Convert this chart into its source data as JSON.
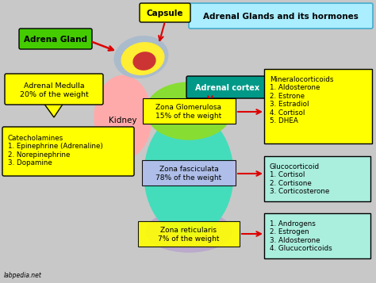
{
  "title": "Adrenal Glands and its hormones",
  "bg_color": "#c8c8c8",
  "title_box_color": "#aaeeff",
  "title_box_edge": "#44aacc",
  "label_adrena_gland": "Adrena Gland",
  "label_capsule": "Capsule",
  "label_adrenal_cortex": "Adrenal cortex",
  "label_kidney": "Kidney",
  "label_adrenal_medulla": "Adrenal Medulla\n20% of the weight",
  "label_catecholamines": "Catecholamines\n1. Epinephrine (Adrenaline)\n2. Norepinephrine\n3. Dopamine",
  "label_zona_glomerulosa": "Zona Glomerulosa\n15% of the weight",
  "label_zona_fasciculata": "Zona fasciculata\n78% of the weight",
  "label_zona_reticularis": "Zona reticularis\n7% of the weight",
  "label_mineralocorticoids": "Mineralocorticoids\n1. Aldosterone\n2. Estrone\n3. Estradiol\n4. Cortisol\n5. DHEA",
  "label_glucocorticoid": "Glucocorticoid\n1. Cortisol\n2. Cortisone\n3. Corticosterone",
  "label_androgens": "1. Androgens\n2. Estrogen\n3. Aldosterone\n4. Glucucorticoids",
  "label_labpedia": "labpedia.net",
  "yellow": "#ffff00",
  "green_box": "#44cc00",
  "teal": "#009988",
  "teal_dark": "#007766",
  "cyan_box": "#aaeedd",
  "light_green_zone": "#88dd33",
  "cyan_zone": "#44ddbb",
  "lavender_zone": "#bbaacc",
  "pink_kidney": "#ffaaaa",
  "adrenal_yellow": "#ffee33",
  "adrenal_gray": "#9999bb",
  "adrenal_bluegray": "#aabbcc",
  "red_arrow": "#dd0000"
}
